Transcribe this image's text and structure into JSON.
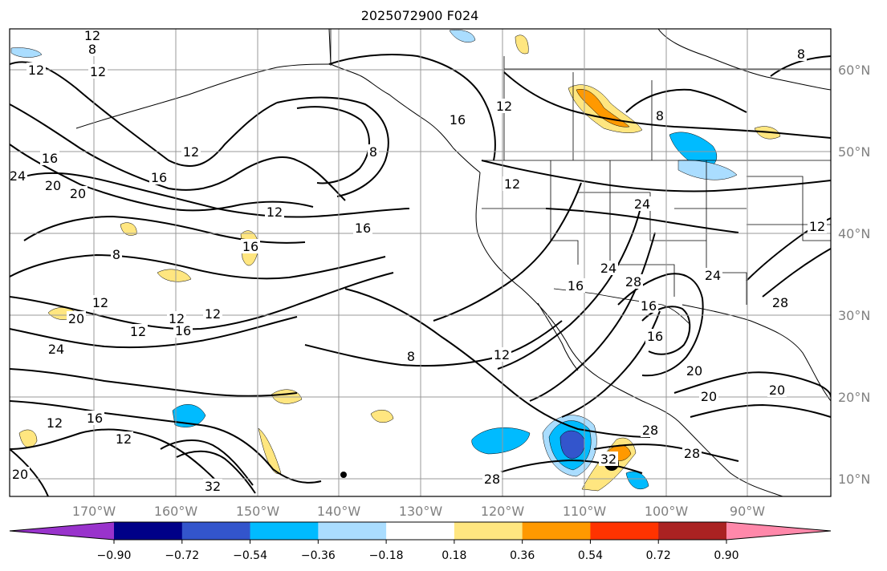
{
  "title": "2025072900 F024",
  "lat_labels": [
    "60°N",
    "50°N",
    "40°N",
    "30°N",
    "20°N",
    "10°N"
  ],
  "lon_labels": [
    "170°W",
    "160°W",
    "150°W",
    "140°W",
    "130°W",
    "120°W",
    "110°W",
    "100°W",
    "90°W"
  ],
  "colorbar": {
    "colors": [
      "#9933cc",
      "#000088",
      "#3355cc",
      "#00bbff",
      "#aaddff",
      "#ffffff",
      "#ffe680",
      "#ff9900",
      "#ff3300",
      "#aa2222",
      "#ff88aa"
    ],
    "tick_labels": [
      "−0.90",
      "−0.72",
      "−0.54",
      "−0.36",
      "−0.18",
      "0.18",
      "0.36",
      "0.54",
      "0.72",
      "0.90"
    ]
  },
  "contour_labels": [
    "12",
    "12",
    "12",
    "12",
    "12",
    "12",
    "12",
    "12",
    "12",
    "12",
    "12",
    "12",
    "12",
    "12",
    "12",
    "8",
    "8",
    "8",
    "8",
    "8",
    "8",
    "16",
    "16",
    "16",
    "16",
    "16",
    "16",
    "16",
    "16",
    "20",
    "20",
    "20",
    "20",
    "20",
    "20",
    "20",
    "24",
    "24",
    "24",
    "24",
    "24",
    "28",
    "28",
    "28",
    "28",
    "28",
    "32",
    "32",
    "16",
    "16"
  ]
}
